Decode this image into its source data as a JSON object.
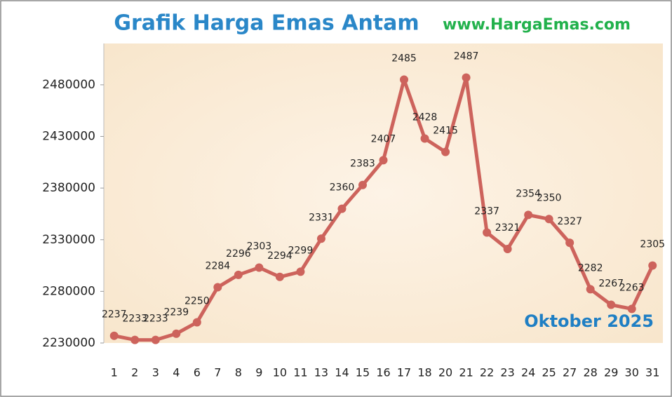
{
  "chart_data": {
    "type": "line",
    "title": "Grafik Harga Emas Antam",
    "subtitle": "www.HargaEmas.com",
    "annotation": "Oktober 2025",
    "categories": [
      "1",
      "2",
      "3",
      "4",
      "6",
      "7",
      "8",
      "9",
      "10",
      "11",
      "13",
      "14",
      "15",
      "16",
      "17",
      "18",
      "20",
      "21",
      "22",
      "23",
      "24",
      "25",
      "27",
      "28",
      "29",
      "30",
      "31"
    ],
    "values": [
      2237000,
      2233000,
      2233000,
      2239000,
      2250000,
      2284000,
      2296000,
      2303000,
      2294000,
      2299000,
      2331000,
      2360000,
      2383000,
      2407000,
      2485000,
      2428000,
      2415000,
      2487000,
      2337000,
      2321000,
      2354000,
      2350000,
      2327000,
      2282000,
      2267000,
      2263000,
      2305000
    ],
    "value_labels": [
      "2237",
      "2233",
      "2233",
      "2239",
      "2250",
      "2284",
      "2296",
      "2303",
      "2294",
      "2299",
      "2331",
      "2360",
      "2383",
      "2407",
      "2485",
      "2428",
      "2415",
      "2487",
      "2337",
      "2321",
      "2354",
      "2350",
      "2327",
      "2282",
      "2267",
      "2263",
      "2305"
    ],
    "color": "#cd635c",
    "ylim": [
      2230000,
      2520000
    ],
    "yticks": [
      2230000,
      2280000,
      2330000,
      2380000,
      2430000,
      2480000
    ],
    "grid": false
  }
}
